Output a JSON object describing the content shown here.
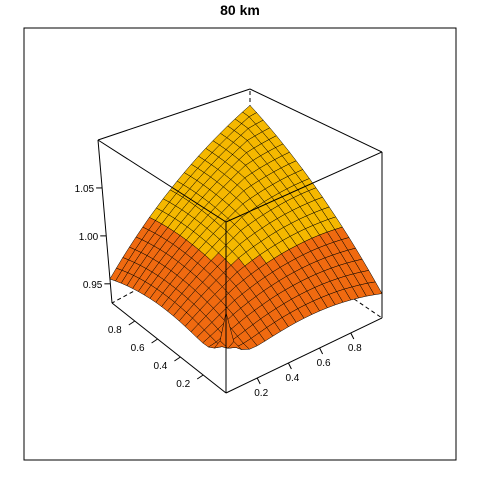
{
  "chart_data": {
    "type": "surface3d",
    "title": "80 km",
    "x_ticks": [
      0.2,
      0.4,
      0.6,
      0.8
    ],
    "y_ticks": [
      0.2,
      0.4,
      0.6,
      0.8
    ],
    "z_ticks": [
      0.95,
      1.0,
      1.05
    ],
    "x_tick_labels": [
      "0.2",
      "0.4",
      "0.6",
      "0.8"
    ],
    "y_tick_labels": [
      "0.2",
      "0.4",
      "0.6",
      "0.8"
    ],
    "z_tick_labels": [
      "0.95",
      "1.00",
      "1.05"
    ],
    "xlim": [
      0,
      1
    ],
    "ylim": [
      0,
      1
    ],
    "zlim": [
      0.93,
      1.1
    ],
    "grid_resolution": 20,
    "surface_note": "peak near (0,0) and along the back diagonal; minima at the two side corners",
    "colors": {
      "high": "#f5b800",
      "low": "#f06a10",
      "edge": "#000000"
    }
  }
}
